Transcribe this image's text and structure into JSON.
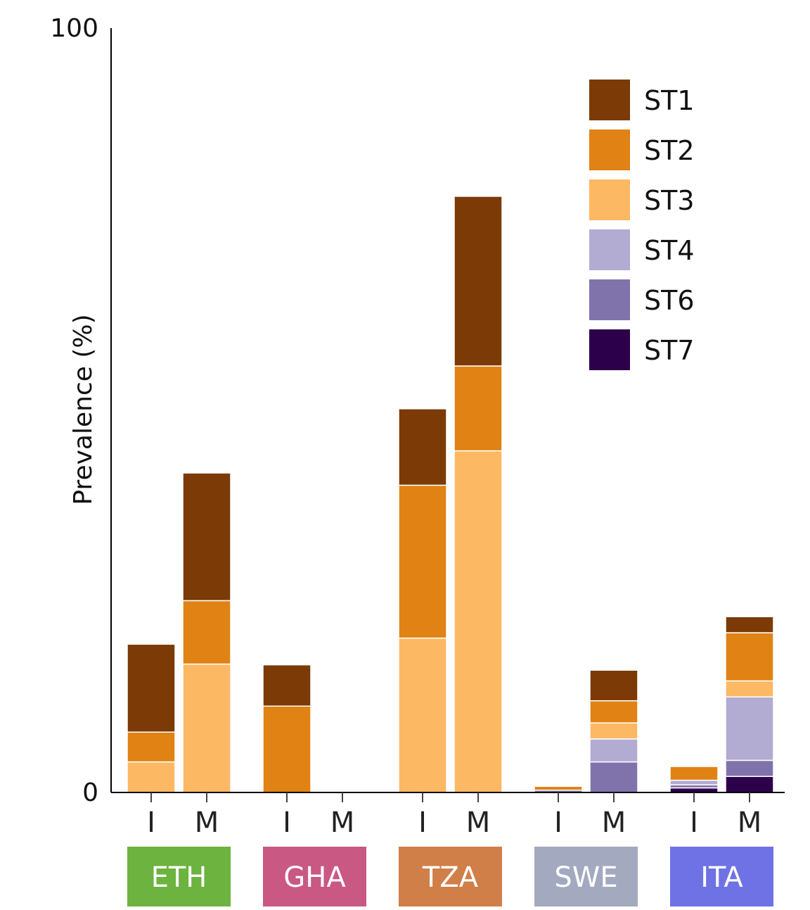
{
  "chart_data": {
    "type": "stacked-bar",
    "ylabel": "Prevalence (%)",
    "ylim": [
      0,
      100
    ],
    "yticks": [
      "0",
      "100"
    ],
    "legend_position": "top-right",
    "series": [
      {
        "name": "ST1",
        "color": "#7b3a06"
      },
      {
        "name": "ST2",
        "color": "#e08214"
      },
      {
        "name": "ST3",
        "color": "#fdb863"
      },
      {
        "name": "ST4",
        "color": "#b2abd2"
      },
      {
        "name": "ST6",
        "color": "#8073ac"
      },
      {
        "name": "ST7",
        "color": "#2d004b"
      }
    ],
    "groups": [
      {
        "country": "ETH",
        "color": "#6db33f",
        "bars": [
          {
            "label": "I",
            "values": {
              "ST3": 4.0,
              "ST2": 3.9,
              "ST1": 11.5
            }
          },
          {
            "label": "M",
            "values": {
              "ST3": 16.8,
              "ST2": 8.3,
              "ST1": 16.7
            }
          }
        ]
      },
      {
        "country": "GHA",
        "color": "#c95882",
        "bars": [
          {
            "label": "I",
            "values": {
              "ST2": 11.3,
              "ST1": 5.4
            }
          },
          {
            "label": "M",
            "values": {}
          }
        ]
      },
      {
        "country": "TZA",
        "color": "#d17f49",
        "bars": [
          {
            "label": "I",
            "values": {
              "ST3": 20.2,
              "ST2": 20.0,
              "ST1": 10.0
            }
          },
          {
            "label": "M",
            "values": {
              "ST3": 44.7,
              "ST2": 11.1,
              "ST1": 22.2
            }
          }
        ]
      },
      {
        "country": "SWE",
        "color": "#a3a9bf",
        "bars": [
          {
            "label": "I",
            "values": {
              "ST6": 0.3,
              "ST2": 0.5
            }
          },
          {
            "label": "M",
            "values": {
              "ST6": 4.0,
              "ST4": 3.0,
              "ST3": 2.1,
              "ST2": 2.9,
              "ST1": 4.0
            }
          }
        ]
      },
      {
        "country": "ITA",
        "color": "#6f72e4",
        "bars": [
          {
            "label": "I",
            "values": {
              "ST7": 0.6,
              "ST6": 0.4,
              "ST4": 0.6,
              "ST2": 1.8
            }
          },
          {
            "label": "M",
            "values": {
              "ST7": 2.1,
              "ST6": 2.1,
              "ST4": 8.3,
              "ST3": 2.1,
              "ST2": 6.3,
              "ST1": 2.1
            }
          }
        ]
      }
    ]
  }
}
